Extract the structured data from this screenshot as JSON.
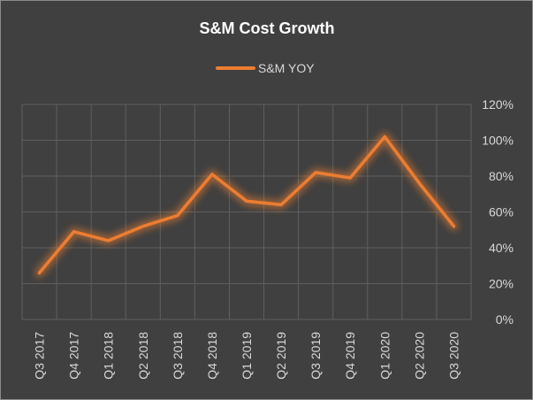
{
  "chart_data": {
    "type": "line",
    "title": "S&M Cost Growth",
    "xlabel": "",
    "ylabel": "",
    "categories": [
      "Q3 2017",
      "Q4 2017",
      "Q1 2018",
      "Q2 2018",
      "Q3 2018",
      "Q4 2018",
      "Q1 2019",
      "Q2 2019",
      "Q3 2019",
      "Q4 2019",
      "Q1 2020",
      "Q2 2020",
      "Q3 2020"
    ],
    "series": [
      {
        "name": "S&M YOY",
        "values": [
          26,
          49,
          44,
          52,
          58,
          81,
          66,
          64,
          82,
          79,
          102,
          76,
          52
        ]
      }
    ],
    "ylim": [
      0,
      120
    ],
    "yticks": [
      "0%",
      "20%",
      "40%",
      "60%",
      "80%",
      "100%",
      "120%"
    ],
    "y_axis_position": "right",
    "legend_position": "top",
    "grid": true,
    "colors": {
      "background": "#404040",
      "series": "#ed7d31",
      "grid": "#5f5f5f",
      "text": "#d9d9d9"
    }
  }
}
